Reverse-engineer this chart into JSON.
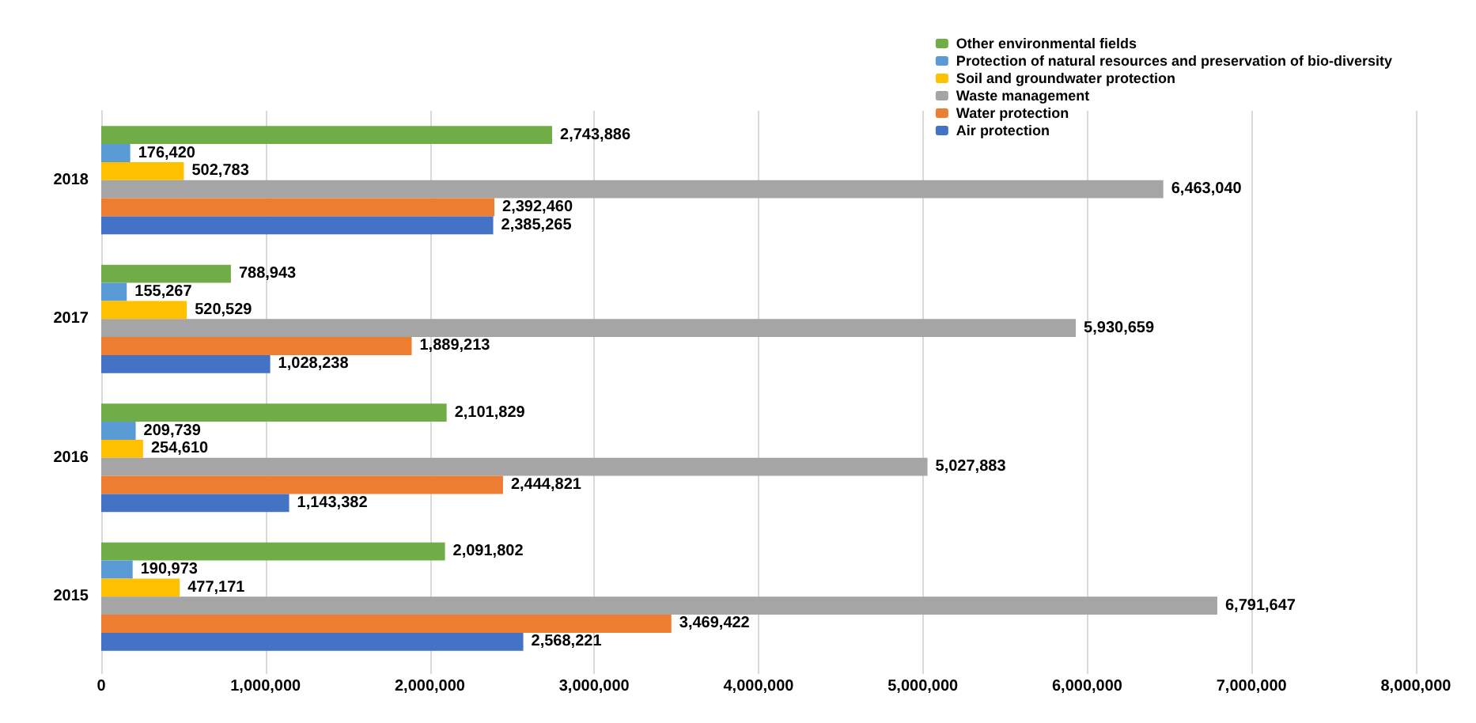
{
  "chart_data": {
    "type": "bar",
    "orientation": "horizontal",
    "categories": [
      "2018",
      "2017",
      "2016",
      "2015"
    ],
    "series": [
      {
        "name": "Other environmental fields",
        "color": "#70ad47",
        "values": [
          2743886,
          788943,
          2101829,
          2091802
        ],
        "value_labels": [
          "2,743,886",
          "788,943",
          "2,101,829",
          "2,091,802"
        ]
      },
      {
        "name": "Protection of natural resources and preservation of bio-diversity",
        "color": "#5b9bd5",
        "values": [
          176420,
          155267,
          209739,
          190973
        ],
        "value_labels": [
          "176,420",
          "155,267",
          "209,739",
          "190,973"
        ]
      },
      {
        "name": "Soil and groundwater protection",
        "color": "#ffc000",
        "values": [
          502783,
          520529,
          254610,
          477171
        ],
        "value_labels": [
          "502,783",
          "520,529",
          "254,610",
          "477,171"
        ]
      },
      {
        "name": "Waste management",
        "color": "#a5a5a5",
        "values": [
          6463040,
          5930659,
          5027883,
          6791647
        ],
        "value_labels": [
          "6,463,040",
          "5,930,659",
          "5,027,883",
          "6,791,647"
        ]
      },
      {
        "name": "Water protection",
        "color": "#ed7d31",
        "values": [
          2392460,
          1889213,
          2444821,
          3469422
        ],
        "value_labels": [
          "2,392,460",
          "1,889,213",
          "2,444,821",
          "3,469,422"
        ]
      },
      {
        "name": "Air protection",
        "color": "#4472c4",
        "values": [
          2385265,
          1028238,
          1143382,
          2568221
        ],
        "value_labels": [
          "2,385,265",
          "1,028,238",
          "1,143,382",
          "2,568,221"
        ]
      }
    ],
    "xlim": [
      0,
      8000000
    ],
    "xticks": [
      0,
      {
        "value": 1000000,
        "label": "1,000,000"
      },
      {
        "value": 2000000,
        "label": "2,000,000"
      },
      {
        "value": 3000000,
        "label": "3,000,000"
      },
      {
        "value": 4000000,
        "label": "4,000,000"
      },
      {
        "value": 5000000,
        "label": "5,000,000"
      },
      {
        "value": 6000000,
        "label": "6,000,000"
      },
      {
        "value": 7000000,
        "label": "7,000,000"
      },
      {
        "value": 8000000,
        "label": "8,000,000"
      }
    ],
    "grid": "x",
    "legend": "top right"
  }
}
